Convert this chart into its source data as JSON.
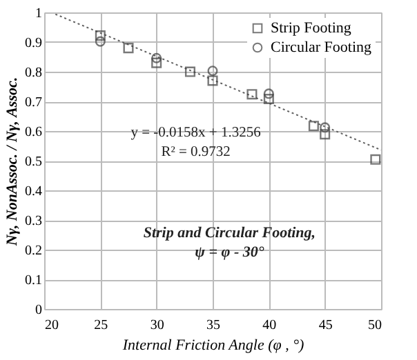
{
  "chart_data": {
    "type": "scatter",
    "xlabel": "Internal Friction Angle (φ , °)",
    "ylabel": "Nγ, NonAssoc. / Nγ, Assoc.",
    "annotations": [
      "y = -0.0158x + 1.3256",
      "R² = 0.9732",
      "Strip and Circular Footing,",
      "ψ = φ - 30°"
    ],
    "series": [
      {
        "name": "Strip Footing",
        "type": "scatter",
        "marker": "square",
        "color": "#404040",
        "x": [
          25,
          27.5,
          30,
          33,
          35,
          38.5,
          40,
          44,
          45,
          49.5
        ],
        "values": [
          0.922,
          0.88,
          0.83,
          0.8,
          0.77,
          0.724,
          0.708,
          0.617,
          0.589,
          0.504
        ]
      },
      {
        "name": "Circular Footing",
        "type": "scatter",
        "marker": "circle",
        "color": "#404040",
        "x": [
          25,
          30,
          35,
          40,
          45
        ],
        "values": [
          0.902,
          0.846,
          0.803,
          0.726,
          0.612
        ]
      },
      {
        "type": "line",
        "line_style": "dotted",
        "color": "#606060",
        "x": [
          21,
          50
        ],
        "values": [
          0.994,
          0.536
        ]
      }
    ],
    "xlim": [
      20,
      50
    ],
    "xticks": [
      20,
      25,
      30,
      35,
      40,
      45,
      50
    ],
    "ylim": [
      0,
      1
    ],
    "yticks": [
      0,
      0.1,
      0.2,
      0.3,
      0.4,
      0.5,
      0.6,
      0.7,
      0.8,
      0.9,
      1
    ],
    "grid": true,
    "legend": "top right"
  }
}
